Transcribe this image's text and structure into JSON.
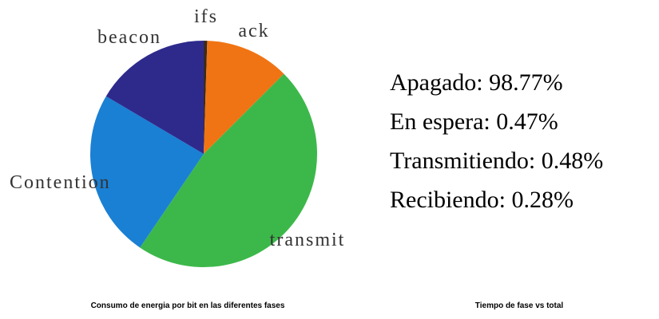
{
  "chart_data": {
    "type": "pie",
    "title": "Consumo de energia por bit en las diferentes fases",
    "categories": [
      "ifs",
      "ack",
      "transmit",
      "Contention",
      "beacon"
    ],
    "values": [
      0.5,
      12,
      47,
      24,
      16.5
    ],
    "colors": [
      "#3a2a20",
      "#f07414",
      "#3cb84a",
      "#1a80d4",
      "#2e2a8c"
    ]
  },
  "panel2": {
    "lines": [
      "Apagado: 98.77%",
      "En espera: 0.47%",
      "Transmitiendo: 0.48%",
      "Recibiendo: 0.28%"
    ],
    "caption": "Tiempo de fase vs total"
  }
}
